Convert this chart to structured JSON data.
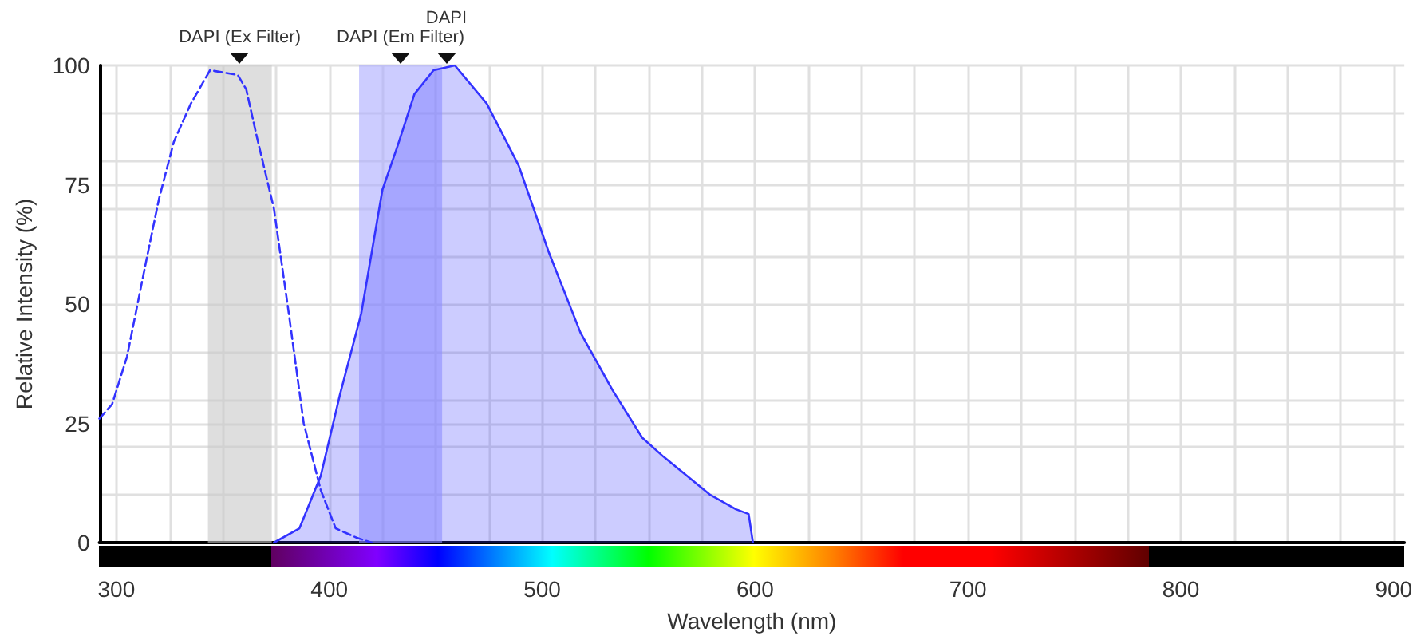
{
  "chart_data": {
    "type": "line",
    "xlabel": "Wavelength (nm)",
    "ylabel": "Relative Intensity (%)",
    "xlim": [
      292,
      905
    ],
    "ylim": [
      0,
      100
    ],
    "xticks": [
      300,
      {
        "value": 325,
        "label": null
      },
      {
        "value": 350,
        "label": null
      },
      {
        "value": 375,
        "label": null
      },
      400,
      {
        "value": 425,
        "label": null
      },
      {
        "value": 450,
        "label": null
      },
      {
        "value": 475,
        "label": null
      },
      500,
      {
        "value": 525,
        "label": null
      },
      {
        "value": 550,
        "label": null
      },
      {
        "value": 575,
        "label": null
      },
      600,
      {
        "value": 625,
        "label": null
      },
      {
        "value": 650,
        "label": null
      },
      {
        "value": 675,
        "label": null
      },
      700,
      {
        "value": 725,
        "label": null
      },
      {
        "value": 750,
        "label": null
      },
      {
        "value": 775,
        "label": null
      },
      800,
      {
        "value": 825,
        "label": null
      },
      {
        "value": 850,
        "label": null
      },
      {
        "value": 875,
        "label": null
      },
      900
    ],
    "yticks": [
      0,
      {
        "value": 10,
        "label": null
      },
      {
        "value": 20,
        "label": null
      },
      25,
      {
        "value": 30,
        "label": null
      },
      {
        "value": 40,
        "label": null
      },
      50,
      {
        "value": 60,
        "label": null
      },
      {
        "value": 70,
        "label": null
      },
      75,
      {
        "value": 80,
        "label": null
      },
      {
        "value": 90,
        "label": null
      },
      100
    ],
    "grid": true,
    "marker": "none",
    "series": [
      {
        "line_style": "dashed",
        "color": "#3333ff",
        "x": [
          292,
          298,
          305,
          314,
          320,
          327,
          335,
          344,
          357,
          361,
          366,
          374,
          381,
          388,
          396,
          403,
          413,
          420
        ],
        "values": [
          26,
          29,
          39,
          59,
          72,
          84,
          92,
          99,
          98,
          95,
          85,
          70,
          48,
          25,
          11,
          3,
          1,
          0
        ]
      },
      {
        "type": "area",
        "line_style": "solid",
        "color": "#3333ff",
        "x": [
          374,
          386,
          396,
          405,
          415,
          425,
          432,
          440,
          449,
          459,
          474,
          489,
          503,
          518,
          533,
          547,
          557,
          579,
          591,
          597,
          599
        ],
        "values": [
          0,
          3,
          14,
          31,
          48,
          74,
          83,
          94,
          99,
          100,
          92,
          79,
          61,
          44,
          32,
          22,
          18,
          10,
          7,
          6,
          0
        ]
      }
    ],
    "bands": [
      {
        "axis": "x",
        "from": 343,
        "to": 373,
        "label": "DAPI (Ex Filter)",
        "color": "#c8c8c8"
      },
      {
        "axis": "x",
        "from": 414,
        "to": 453,
        "label": "DAPI (Em Filter)",
        "color": "#aaaaff"
      }
    ],
    "annotations": [
      {
        "text": "DAPI",
        "x": 455,
        "y": 100
      }
    ]
  }
}
